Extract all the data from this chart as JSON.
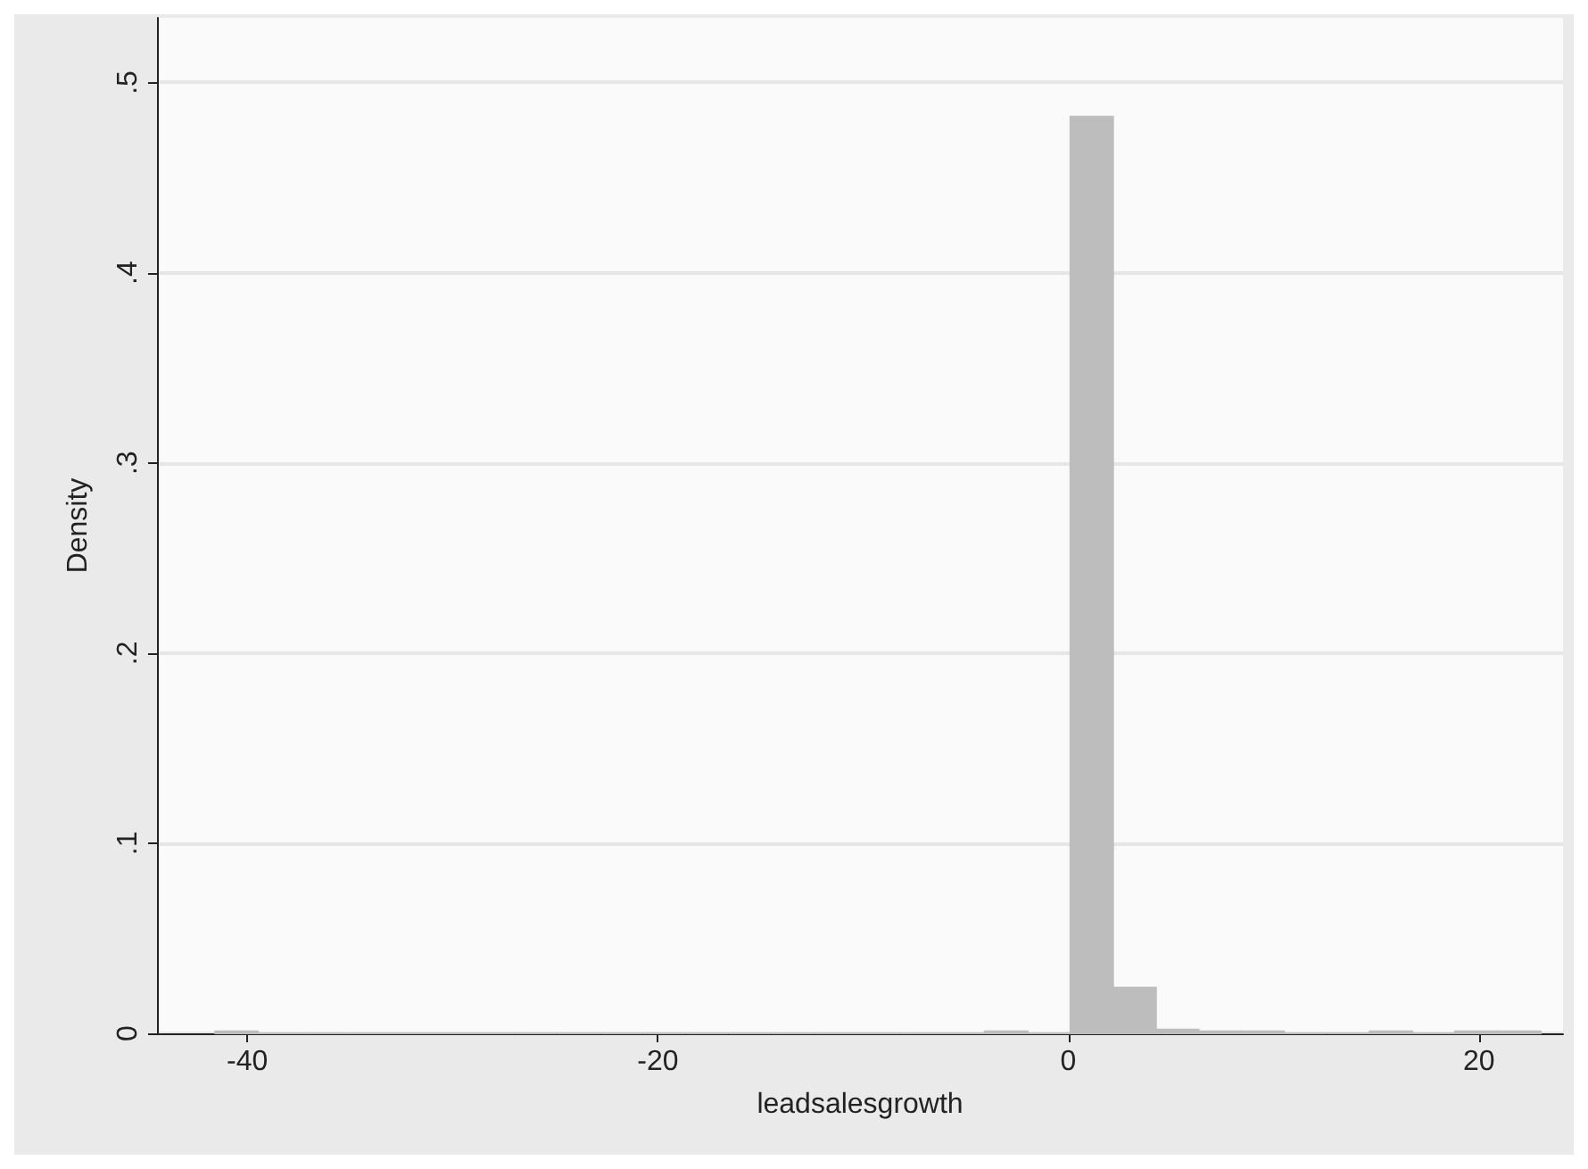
{
  "chart_data": {
    "type": "histogram",
    "xlabel": "leadsalesgrowth",
    "ylabel": "Density",
    "color": "#bdbdbd",
    "bins": [
      -41.56,
      -39.48,
      -37.39,
      -35.31,
      -33.23,
      -31.14,
      -29.06,
      -26.98,
      -24.9,
      -22.81,
      -20.73,
      -18.65,
      -16.56,
      -14.48,
      -12.4,
      -10.32,
      -8.23,
      -6.15,
      -4.07,
      -1.98,
      0.1,
      2.18,
      4.27,
      6.35,
      8.43,
      10.51,
      12.6,
      14.68,
      16.76,
      18.84,
      20.93,
      23.01
    ],
    "values": [
      0.001,
      0,
      0,
      0,
      0,
      0,
      0,
      0,
      0,
      0,
      0,
      0,
      0,
      0,
      0,
      0,
      0,
      0,
      0.001,
      0,
      0.482,
      0.024,
      0.002,
      0.001,
      0.001,
      0,
      0,
      0.001,
      0,
      0.001,
      0.001
    ],
    "xlim": [
      -44.4,
      24.1
    ],
    "xticks": [
      -40,
      -20,
      0,
      20
    ],
    "ylim": [
      0,
      0.534
    ],
    "yticks": [
      {
        "value": 0,
        "label": "0"
      },
      {
        "value": 0.1,
        "label": ".1"
      },
      {
        "value": 0.2,
        "label": ".2"
      },
      {
        "value": 0.3,
        "label": ".3"
      },
      {
        "value": 0.4,
        "label": ".4"
      },
      {
        "value": 0.5,
        "label": ".5"
      }
    ],
    "grid": "y"
  }
}
